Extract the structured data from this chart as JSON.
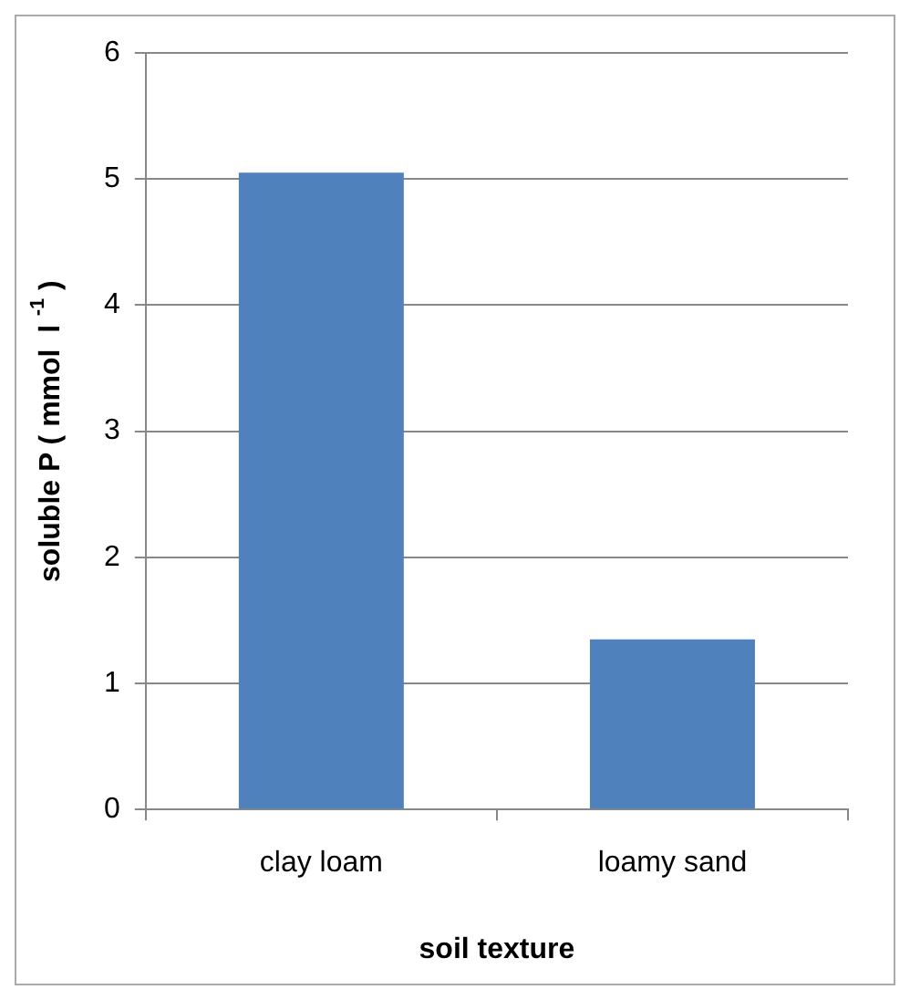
{
  "chart_data": {
    "type": "bar",
    "xlabel": "soil texture",
    "ylabel": "soluble P ( mmol  l $^{-1}$ )",
    "categories": [
      "clay loam",
      "loamy sand"
    ],
    "values": [
      5.05,
      1.35
    ],
    "color": "#4f81bd",
    "ylim": [
      0,
      6
    ],
    "yticks": [
      0,
      1,
      2,
      3,
      4,
      5,
      6
    ],
    "grid": "y",
    "legend": false
  }
}
